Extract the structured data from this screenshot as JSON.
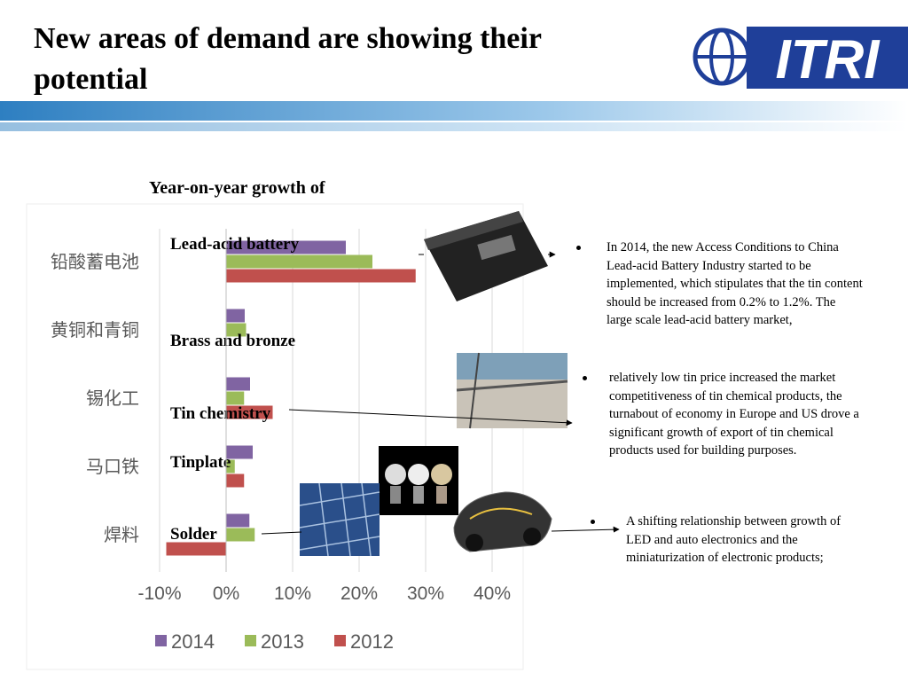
{
  "header": {
    "title": "New areas of demand are showing their potential",
    "logo": "ITRI"
  },
  "chart_data": {
    "type": "hbar",
    "title": "Year-on-year growth of",
    "categories": [
      "铅酸蓄电池",
      "黄铜和青铜",
      "锡化工",
      "马口铁",
      "焊料"
    ],
    "annotations": [
      "Lead-acid battery",
      "Brass and bronze",
      "Tin chemistry",
      "Tinplate",
      "Solder"
    ],
    "series": [
      {
        "name": "2014",
        "color": "#8064a2",
        "values": [
          18,
          2.8,
          3.6,
          4,
          3.5
        ]
      },
      {
        "name": "2013",
        "color": "#9bbb59",
        "values": [
          22,
          3,
          2.7,
          1.3,
          4.3
        ]
      },
      {
        "name": "2012",
        "color": "#c0504d",
        "values": [
          28.5,
          0,
          7,
          2.7,
          -9
        ]
      }
    ],
    "xlim": [
      -10,
      40
    ],
    "xticks": [
      {
        "value": -10,
        "label": "-10%"
      },
      {
        "value": 0,
        "label": "0%"
      },
      {
        "value": 10,
        "label": "10%"
      },
      {
        "value": 20,
        "label": "20%"
      },
      {
        "value": 30,
        "label": "30%"
      },
      {
        "value": 40,
        "label": "40%"
      }
    ],
    "grid": true,
    "legend": "bottom"
  },
  "bullets": [
    "In 2014, the new Access Conditions to China Lead-acid Battery Industry started to be implemented, which stipulates that the tin content should be increased from 0.2% to 1.2%. The large scale lead-acid battery market,",
    "relatively low tin price increased the market competitiveness of tin chemical products, the turnabout of economy in Europe and US drove a significant growth of export of tin chemical products used for building purposes.",
    "A shifting relationship between growth of LED and auto electronics and the miniaturization of electronic products;"
  ]
}
